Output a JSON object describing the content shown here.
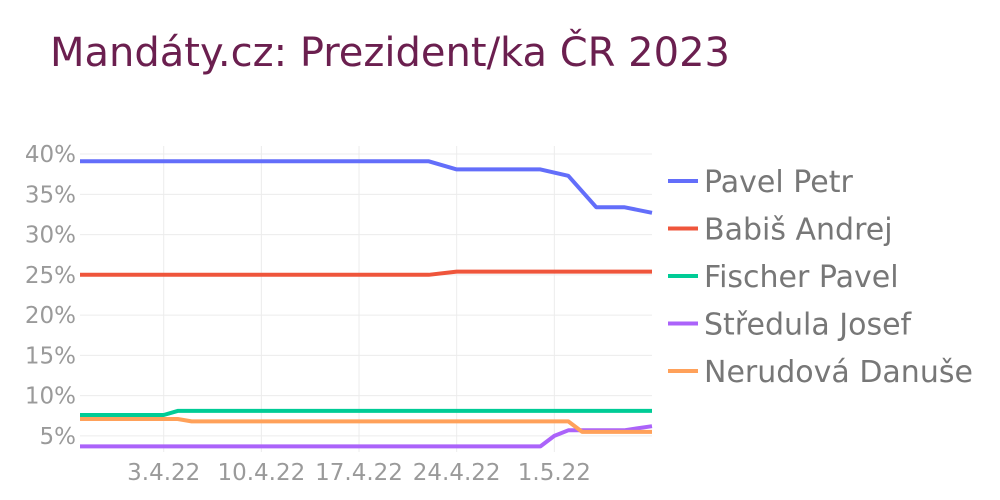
{
  "chart_data": {
    "type": "line",
    "title": "Mandáty.cz: Prezident/ka ČR 2023",
    "x_ticks": [
      {
        "date": "2022-04-03",
        "label": "3.4.22"
      },
      {
        "date": "2022-04-10",
        "label": "10.4.22"
      },
      {
        "date": "2022-04-17",
        "label": "17.4.22"
      },
      {
        "date": "2022-04-24",
        "label": "24.4.22"
      },
      {
        "date": "2022-05-01",
        "label": "1.5.22"
      }
    ],
    "xlim": [
      "2022-03-28",
      "2022-05-08"
    ],
    "y_ticks": [
      5,
      10,
      15,
      20,
      25,
      30,
      35,
      40
    ],
    "y_tick_labels": [
      "5%",
      "10%",
      "15%",
      "20%",
      "25%",
      "30%",
      "35%",
      "40%"
    ],
    "ylim": [
      3,
      41
    ],
    "grid": true,
    "legend_position": "right",
    "series": [
      {
        "name": "Pavel Petr",
        "color": "#636efa",
        "points": [
          [
            "2022-03-28",
            39.1
          ],
          [
            "2022-04-22",
            39.1
          ],
          [
            "2022-04-24",
            38.1
          ],
          [
            "2022-04-30",
            38.1
          ],
          [
            "2022-05-02",
            37.3
          ],
          [
            "2022-05-04",
            33.4
          ],
          [
            "2022-05-06",
            33.4
          ],
          [
            "2022-05-08",
            32.7
          ]
        ]
      },
      {
        "name": "Babiš Andrej",
        "color": "#ef553b",
        "points": [
          [
            "2022-03-28",
            25.0
          ],
          [
            "2022-04-22",
            25.0
          ],
          [
            "2022-04-24",
            25.4
          ],
          [
            "2022-05-08",
            25.4
          ]
        ]
      },
      {
        "name": "Fischer Pavel",
        "color": "#00cc96",
        "points": [
          [
            "2022-03-28",
            7.6
          ],
          [
            "2022-04-03",
            7.6
          ],
          [
            "2022-04-04",
            8.1
          ],
          [
            "2022-05-08",
            8.1
          ]
        ]
      },
      {
        "name": "Středula Josef",
        "color": "#ab63fa",
        "points": [
          [
            "2022-03-28",
            3.7
          ],
          [
            "2022-04-30",
            3.7
          ],
          [
            "2022-05-01",
            5.0
          ],
          [
            "2022-05-02",
            5.7
          ],
          [
            "2022-05-06",
            5.7
          ],
          [
            "2022-05-08",
            6.2
          ]
        ]
      },
      {
        "name": "Nerudová Danuše",
        "color": "#ffa15a",
        "points": [
          [
            "2022-03-28",
            7.1
          ],
          [
            "2022-04-04",
            7.1
          ],
          [
            "2022-04-05",
            6.8
          ],
          [
            "2022-05-02",
            6.8
          ],
          [
            "2022-05-03",
            5.5
          ],
          [
            "2022-05-08",
            5.5
          ]
        ]
      }
    ]
  }
}
